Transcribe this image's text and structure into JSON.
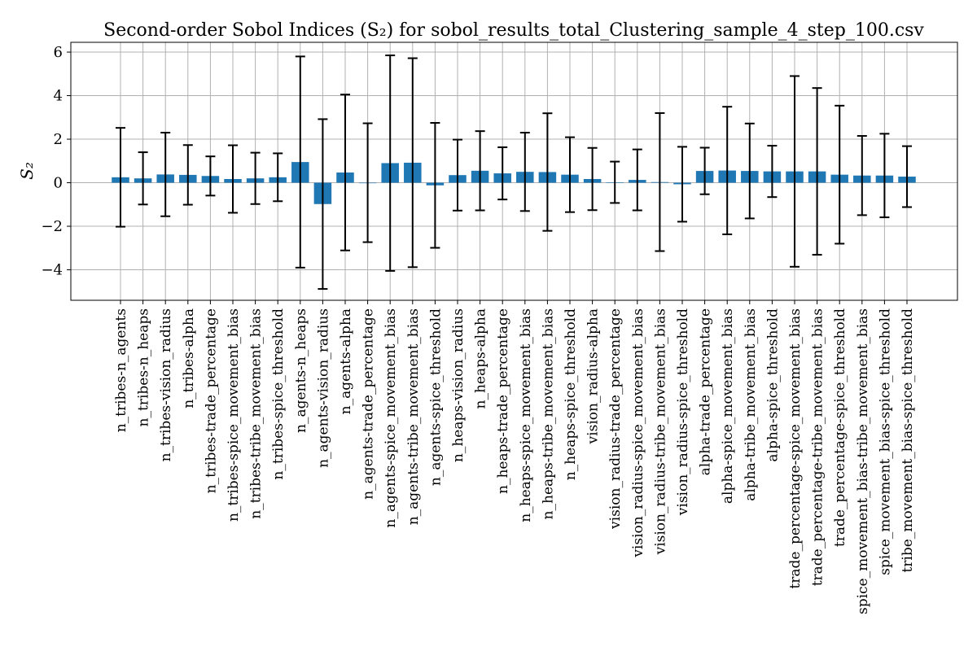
{
  "chart_data": {
    "type": "bar",
    "title": "Second-order Sobol Indices (S₂) for sobol_results_total_Clustering_sample_4_step_100.csv",
    "xlabel": "",
    "ylabel": "S₂",
    "ylim": [
      -5.4,
      6.45
    ],
    "yticks": [
      -4,
      -2,
      0,
      2,
      4,
      6
    ],
    "grid": true,
    "bar_color": "#1f77b4",
    "categories": [
      "n_tribes-n_agents",
      "n_tribes-n_heaps",
      "n_tribes-vision_radius",
      "n_tribes-alpha",
      "n_tribes-trade_percentage",
      "n_tribes-spice_movement_bias",
      "n_tribes-tribe_movement_bias",
      "n_tribes-spice_threshold",
      "n_agents-n_heaps",
      "n_agents-vision_radius",
      "n_agents-alpha",
      "n_agents-trade_percentage",
      "n_agents-spice_movement_bias",
      "n_agents-tribe_movement_bias",
      "n_agents-spice_threshold",
      "n_heaps-vision_radius",
      "n_heaps-alpha",
      "n_heaps-trade_percentage",
      "n_heaps-spice_movement_bias",
      "n_heaps-tribe_movement_bias",
      "n_heaps-spice_threshold",
      "vision_radius-alpha",
      "vision_radius-trade_percentage",
      "vision_radius-spice_movement_bias",
      "vision_radius-tribe_movement_bias",
      "vision_radius-spice_threshold",
      "alpha-trade_percentage",
      "alpha-spice_movement_bias",
      "alpha-tribe_movement_bias",
      "alpha-spice_threshold",
      "trade_percentage-spice_movement_bias",
      "trade_percentage-tribe_movement_bias",
      "trade_percentage-spice_threshold",
      "spice_movement_bias-tribe_movement_bias",
      "spice_movement_bias-spice_threshold",
      "tribe_movement_bias-spice_threshold"
    ],
    "values": [
      0.25,
      0.2,
      0.38,
      0.36,
      0.31,
      0.17,
      0.2,
      0.25,
      0.95,
      -0.98,
      0.47,
      0.0,
      0.9,
      0.92,
      -0.12,
      0.35,
      0.55,
      0.43,
      0.5,
      0.49,
      0.37,
      0.17,
      0.02,
      0.13,
      0.03,
      -0.07,
      0.54,
      0.56,
      0.54,
      0.52,
      0.52,
      0.52,
      0.37,
      0.33,
      0.33,
      0.28
    ],
    "errors": [
      2.27,
      1.2,
      1.92,
      1.37,
      0.9,
      1.55,
      1.18,
      1.1,
      4.85,
      3.9,
      3.58,
      2.73,
      4.95,
      4.8,
      2.87,
      1.63,
      1.82,
      1.2,
      1.8,
      2.7,
      1.72,
      1.43,
      0.95,
      1.4,
      3.17,
      1.72,
      1.07,
      2.93,
      2.18,
      1.18,
      4.38,
      3.83,
      3.17,
      1.82,
      1.92,
      1.4
    ]
  }
}
